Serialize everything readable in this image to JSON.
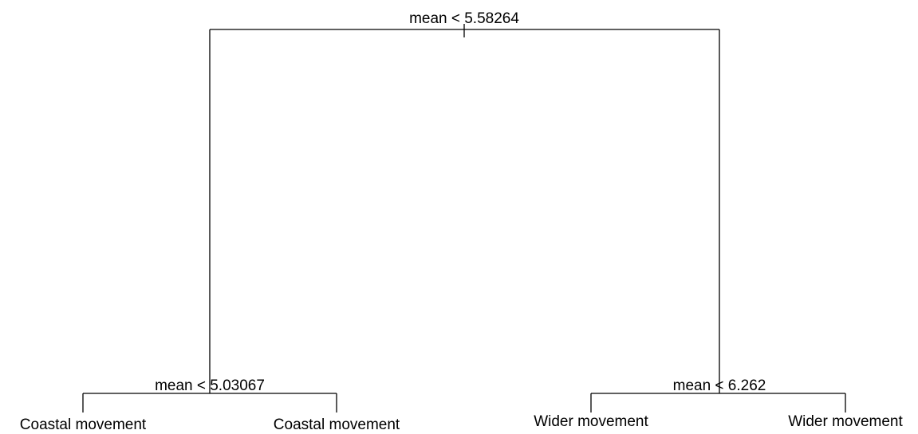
{
  "tree": {
    "splits": [
      {
        "label": "mean < 5.58264"
      },
      {
        "label": "mean < 5.03067"
      },
      {
        "label": "mean < 6.262"
      }
    ],
    "leaves": [
      {
        "label": "Coastal movement"
      },
      {
        "label": "Coastal movement"
      },
      {
        "label": "Wider movement"
      },
      {
        "label": "Wider movement"
      }
    ]
  }
}
